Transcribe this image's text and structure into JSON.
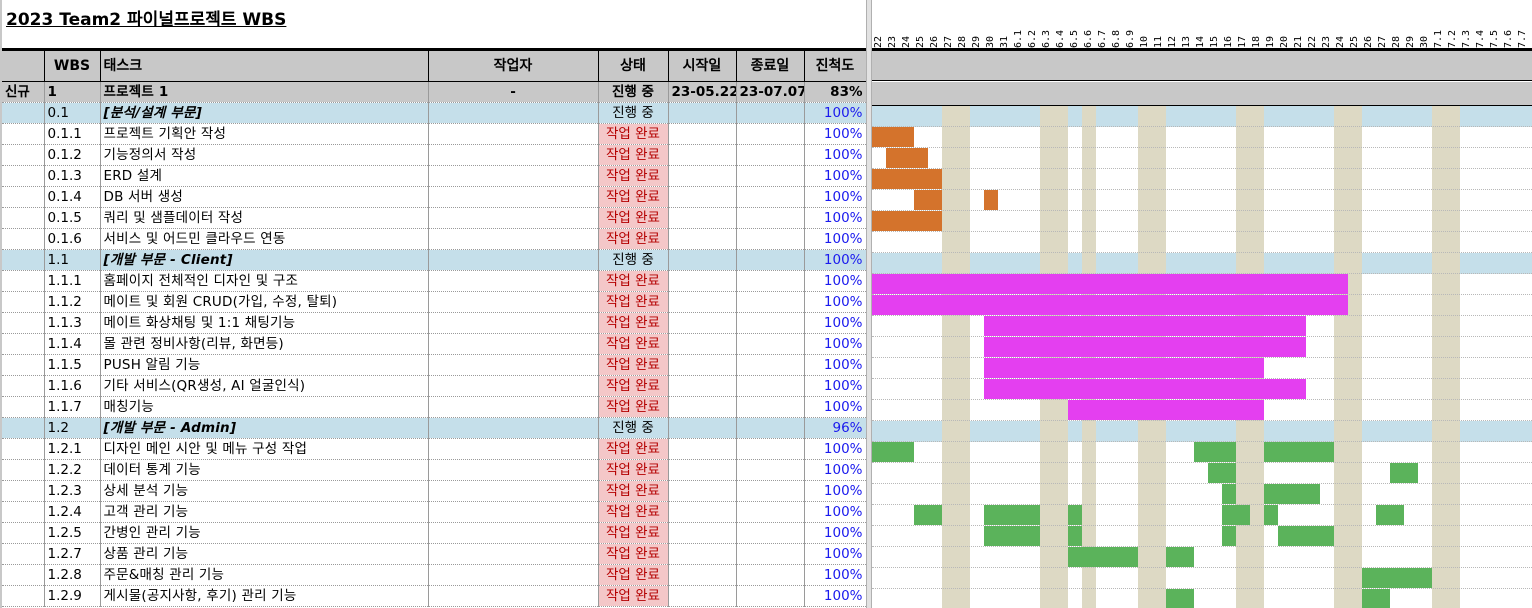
{
  "title": "2023 Team2 파이널프로젝트 WBS",
  "columns": {
    "flag": "",
    "wbs": "WBS",
    "task": "태스크",
    "worker": "작업자",
    "status": "상태",
    "start": "시작일",
    "end": "종료일",
    "progress": "진척도"
  },
  "rows": [
    {
      "kind": "project",
      "flag": "신규",
      "wbs": "1",
      "task": "프로젝트 1",
      "worker": "-",
      "status": "진행 중",
      "start": "23-05.22",
      "end": "23-07.07",
      "progress": "83%"
    },
    {
      "kind": "phase",
      "flag": "",
      "wbs": "0.1",
      "task": "[분석/설계 부문]",
      "worker": "",
      "status": "진행 중",
      "start": "",
      "end": "",
      "progress": "100%"
    },
    {
      "kind": "task",
      "flag": "",
      "wbs": "0.1.1",
      "task": "프로젝트 기획안 작성",
      "worker": "",
      "status": "작업 완료",
      "start": "",
      "end": "",
      "progress": "100%"
    },
    {
      "kind": "task",
      "flag": "",
      "wbs": "0.1.2",
      "task": "기능정의서 작성",
      "worker": "",
      "status": "작업 완료",
      "start": "",
      "end": "",
      "progress": "100%"
    },
    {
      "kind": "task",
      "flag": "",
      "wbs": "0.1.3",
      "task": "ERD 설계",
      "worker": "",
      "status": "작업 완료",
      "start": "",
      "end": "",
      "progress": "100%"
    },
    {
      "kind": "task",
      "flag": "",
      "wbs": "0.1.4",
      "task": "DB 서버 생성",
      "worker": "",
      "status": "작업 완료",
      "start": "",
      "end": "",
      "progress": "100%"
    },
    {
      "kind": "task",
      "flag": "",
      "wbs": "0.1.5",
      "task": "쿼리 및 샘플데이터 작성",
      "worker": "",
      "status": "작업 완료",
      "start": "",
      "end": "",
      "progress": "100%"
    },
    {
      "kind": "task",
      "flag": "",
      "wbs": "0.1.6",
      "task": "서비스 및 어드민 클라우드 연동",
      "worker": "",
      "status": "작업 완료",
      "start": "",
      "end": "",
      "progress": "100%"
    },
    {
      "kind": "phase",
      "flag": "",
      "wbs": "1.1",
      "task": "[개발 부문 - Client]",
      "worker": "",
      "status": "진행 중",
      "start": "",
      "end": "",
      "progress": "100%"
    },
    {
      "kind": "task",
      "flag": "",
      "wbs": "1.1.1",
      "task": "홈페이지 전체적인 디자인 및 구조",
      "worker": "",
      "status": "작업 완료",
      "start": "",
      "end": "",
      "progress": "100%"
    },
    {
      "kind": "task",
      "flag": "",
      "wbs": "1.1.2",
      "task": "메이트 및 회원 CRUD(가입, 수정, 탈퇴)",
      "worker": "",
      "status": "작업 완료",
      "start": "",
      "end": "",
      "progress": "100%"
    },
    {
      "kind": "task",
      "flag": "",
      "wbs": "1.1.3",
      "task": "메이트 화상채팅 및 1:1 채팅기능",
      "worker": "",
      "status": "작업 완료",
      "start": "",
      "end": "",
      "progress": "100%"
    },
    {
      "kind": "task",
      "flag": "",
      "wbs": "1.1.4",
      "task": "몰 관련 정비사항(리뷰, 화면등)",
      "worker": "",
      "status": "작업 완료",
      "start": "",
      "end": "",
      "progress": "100%"
    },
    {
      "kind": "task",
      "flag": "",
      "wbs": "1.1.5",
      "task": "PUSH 알림 기능",
      "worker": "",
      "status": "작업 완료",
      "start": "",
      "end": "",
      "progress": "100%"
    },
    {
      "kind": "task",
      "flag": "",
      "wbs": "1.1.6",
      "task": "기타 서비스(QR생성, AI 얼굴인식)",
      "worker": "",
      "status": "작업 완료",
      "start": "",
      "end": "",
      "progress": "100%"
    },
    {
      "kind": "task",
      "flag": "",
      "wbs": "1.1.7",
      "task": "매칭기능",
      "worker": "",
      "status": "작업 완료",
      "start": "",
      "end": "",
      "progress": "100%"
    },
    {
      "kind": "phase",
      "flag": "",
      "wbs": "1.2",
      "task": "[개발 부문 - Admin]",
      "worker": "",
      "status": "진행 중",
      "start": "",
      "end": "",
      "progress": "96%"
    },
    {
      "kind": "task",
      "flag": "",
      "wbs": "1.2.1",
      "task": "디자인 메인 시안 및 메뉴 구성 작업",
      "worker": "",
      "status": "작업 완료",
      "start": "",
      "end": "",
      "progress": "100%"
    },
    {
      "kind": "task",
      "flag": "",
      "wbs": "1.2.2",
      "task": "데이터 통계 기능",
      "worker": "",
      "status": "작업 완료",
      "start": "",
      "end": "",
      "progress": "100%"
    },
    {
      "kind": "task",
      "flag": "",
      "wbs": "1.2.3",
      "task": "상세 분석 기능",
      "worker": "",
      "status": "작업 완료",
      "start": "",
      "end": "",
      "progress": "100%"
    },
    {
      "kind": "task",
      "flag": "",
      "wbs": "1.2.4",
      "task": "고객 관리 기능",
      "worker": "",
      "status": "작업 완료",
      "start": "",
      "end": "",
      "progress": "100%"
    },
    {
      "kind": "task",
      "flag": "",
      "wbs": "1.2.5",
      "task": "간병인 관리 기능",
      "worker": "",
      "status": "작업 완료",
      "start": "",
      "end": "",
      "progress": "100%"
    },
    {
      "kind": "task",
      "flag": "",
      "wbs": "1.2.7",
      "task": "상품 관리 기능",
      "worker": "",
      "status": "작업 완료",
      "start": "",
      "end": "",
      "progress": "100%"
    },
    {
      "kind": "task",
      "flag": "",
      "wbs": "1.2.8",
      "task": "주문&매칭 관리 기능",
      "worker": "",
      "status": "작업 완료",
      "start": "",
      "end": "",
      "progress": "100%"
    },
    {
      "kind": "task",
      "flag": "",
      "wbs": "1.2.9",
      "task": "게시물(공지사항, 후기) 관리 기능",
      "worker": "",
      "status": "작업 완료",
      "start": "",
      "end": "",
      "progress": "100%"
    }
  ],
  "gantt": {
    "dates": [
      "22",
      "23",
      "24",
      "25",
      "26",
      "27",
      "28",
      "29",
      "30",
      "31",
      "6.1",
      "6.2",
      "6.3",
      "6.4",
      "6.5",
      "6.6",
      "6.7",
      "6.8",
      "6.9",
      "10",
      "11",
      "12",
      "13",
      "14",
      "15",
      "16",
      "17",
      "18",
      "19",
      "20",
      "21",
      "22",
      "23",
      "24",
      "25",
      "26",
      "27",
      "28",
      "29",
      "30",
      "7.1",
      "7.2",
      "7.3",
      "7.4",
      "7.5",
      "7.6",
      "7.7"
    ],
    "weekend_days": [
      5,
      6,
      12,
      13,
      15,
      19,
      20,
      26,
      27,
      33,
      34,
      40,
      41
    ],
    "colors": {
      "analysis": "#d4732c",
      "client": "#e43ff0",
      "admin": "#5bb35b",
      "weekend": "#ddd9c4",
      "phase": "#c5dfea",
      "done_bg": "#f4c7c8",
      "done_text": "#b40000"
    },
    "bars": [
      {
        "row": 2,
        "color": "analysis",
        "from": 0,
        "to": 2
      },
      {
        "row": 3,
        "color": "analysis",
        "from": 1,
        "to": 3
      },
      {
        "row": 4,
        "color": "analysis",
        "from": 0,
        "to": 4
      },
      {
        "row": 5,
        "color": "analysis",
        "from": 3,
        "to": 4
      },
      {
        "row": 5,
        "color": "analysis",
        "from": 8,
        "to": 8
      },
      {
        "row": 6,
        "color": "analysis",
        "from": 0,
        "to": 4
      },
      {
        "row": 9,
        "color": "client",
        "from": 0,
        "to": 33
      },
      {
        "row": 10,
        "color": "client",
        "from": 0,
        "to": 33
      },
      {
        "row": 11,
        "color": "client",
        "from": 8,
        "to": 30
      },
      {
        "row": 12,
        "color": "client",
        "from": 8,
        "to": 30
      },
      {
        "row": 13,
        "color": "client",
        "from": 8,
        "to": 27
      },
      {
        "row": 14,
        "color": "client",
        "from": 8,
        "to": 30
      },
      {
        "row": 15,
        "color": "client",
        "from": 14,
        "to": 27
      },
      {
        "row": 17,
        "color": "admin",
        "from": 0,
        "to": 2
      },
      {
        "row": 17,
        "color": "admin",
        "from": 23,
        "to": 25
      },
      {
        "row": 17,
        "color": "admin",
        "from": 28,
        "to": 32
      },
      {
        "row": 18,
        "color": "admin",
        "from": 24,
        "to": 25
      },
      {
        "row": 18,
        "color": "admin",
        "from": 37,
        "to": 38
      },
      {
        "row": 19,
        "color": "admin",
        "from": 25,
        "to": 25
      },
      {
        "row": 19,
        "color": "admin",
        "from": 28,
        "to": 31
      },
      {
        "row": 20,
        "color": "admin",
        "from": 3,
        "to": 4
      },
      {
        "row": 20,
        "color": "admin",
        "from": 8,
        "to": 11
      },
      {
        "row": 20,
        "color": "admin",
        "from": 14,
        "to": 14
      },
      {
        "row": 20,
        "color": "admin",
        "from": 25,
        "to": 26
      },
      {
        "row": 20,
        "color": "admin",
        "from": 28,
        "to": 28
      },
      {
        "row": 20,
        "color": "admin",
        "from": 36,
        "to": 37
      },
      {
        "row": 21,
        "color": "admin",
        "from": 8,
        "to": 11
      },
      {
        "row": 21,
        "color": "admin",
        "from": 14,
        "to": 14
      },
      {
        "row": 21,
        "color": "admin",
        "from": 25,
        "to": 25
      },
      {
        "row": 21,
        "color": "admin",
        "from": 29,
        "to": 32
      },
      {
        "row": 22,
        "color": "admin",
        "from": 14,
        "to": 18
      },
      {
        "row": 22,
        "color": "admin",
        "from": 21,
        "to": 22
      },
      {
        "row": 23,
        "color": "admin",
        "from": 35,
        "to": 39
      },
      {
        "row": 24,
        "color": "admin",
        "from": 21,
        "to": 22
      },
      {
        "row": 24,
        "color": "admin",
        "from": 35,
        "to": 36
      }
    ]
  }
}
